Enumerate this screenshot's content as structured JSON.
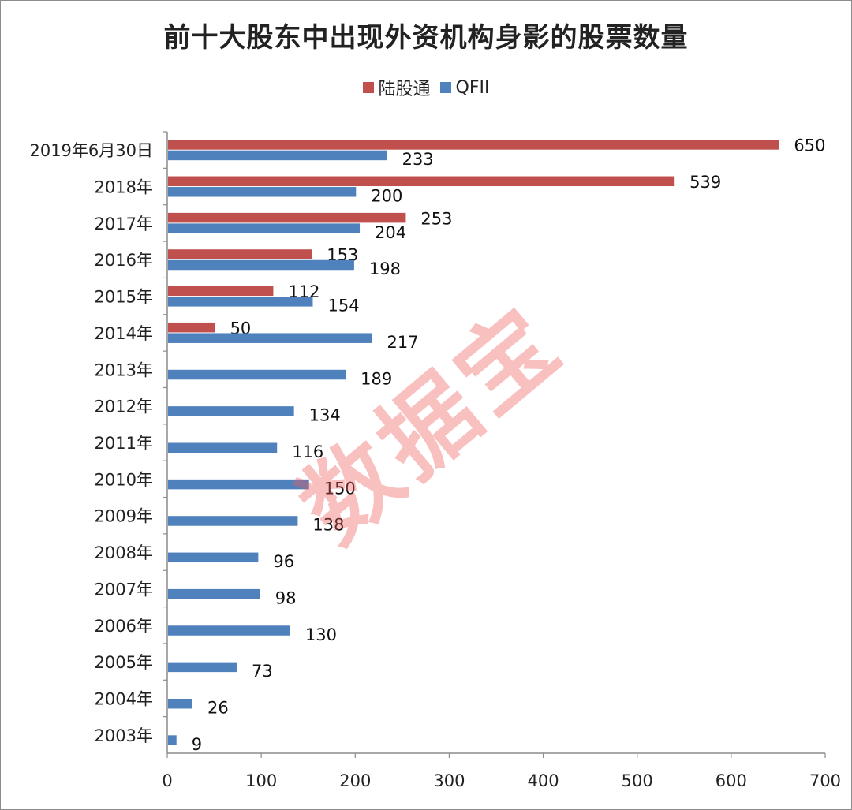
{
  "chart_data": {
    "type": "bar",
    "orientation": "horizontal",
    "title": "前十大股东中出现外资机构身影的股票数量",
    "categories": [
      "2019年6月30日",
      "2018年",
      "2017年",
      "2016年",
      "2015年",
      "2014年",
      "2013年",
      "2012年",
      "2011年",
      "2010年",
      "2009年",
      "2008年",
      "2007年",
      "2006年",
      "2005年",
      "2004年",
      "2003年"
    ],
    "series": [
      {
        "name": "陆股通",
        "color": "#c0504d",
        "values": [
          650,
          539,
          253,
          153,
          112,
          50,
          null,
          null,
          null,
          null,
          null,
          null,
          null,
          null,
          null,
          null,
          null
        ]
      },
      {
        "name": "QFII",
        "color": "#4f81bd",
        "values": [
          233,
          200,
          204,
          198,
          154,
          217,
          189,
          134,
          116,
          150,
          138,
          96,
          98,
          130,
          73,
          26,
          9
        ]
      }
    ],
    "xlim": [
      0,
      700
    ],
    "xticks": [
      0,
      100,
      200,
      300,
      400,
      500,
      600,
      700
    ],
    "xlabel": "",
    "ylabel": "",
    "legend_position": "top-center",
    "grid": false
  },
  "watermark": "数据宝"
}
